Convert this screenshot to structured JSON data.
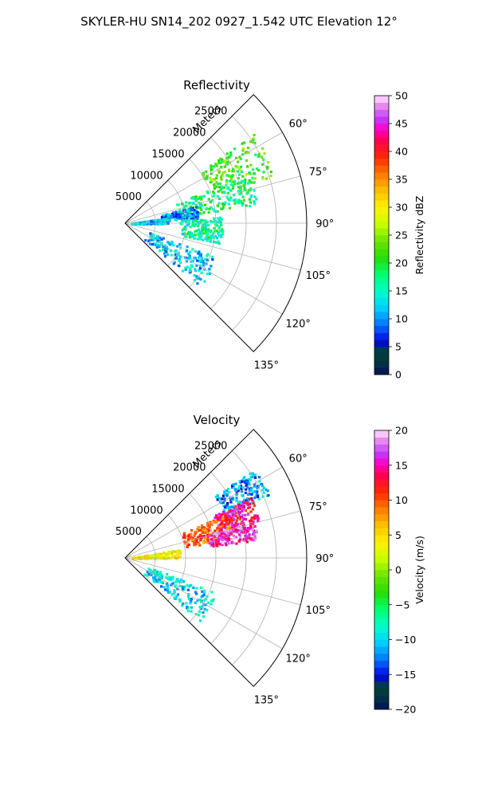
{
  "figure_title": "SKYLER-HU  SN14_202  0927_1.542 UTC Elevation 12°",
  "chart_data": [
    {
      "type": "heatmap",
      "projection": "polar-sector",
      "title": "Reflectivity",
      "radial_axis_label": "Meters",
      "radial_ticks": [
        5000,
        10000,
        15000,
        20000,
        25000
      ],
      "radial_tick_labels": [
        "5000",
        "10000",
        "15000",
        "20000",
        "25000"
      ],
      "azimuth_ticks_deg": [
        60,
        75,
        90,
        105,
        120,
        135
      ],
      "azimuth_tick_labels": [
        "60°",
        "75°",
        "90°",
        "105°",
        "120°",
        "135°"
      ],
      "azimuth_range_deg": [
        45,
        135
      ],
      "radial_range": [
        0,
        30000
      ],
      "grid": true,
      "colorbar": {
        "label": "Reflectivity dBZ",
        "range": [
          0,
          50
        ],
        "ticks": [
          0,
          5,
          10,
          15,
          20,
          25,
          30,
          35,
          40,
          45,
          50
        ],
        "tick_labels": [
          "0",
          "5",
          "10",
          "15",
          "20",
          "25",
          "30",
          "35",
          "40",
          "45",
          "50"
        ],
        "colormap": "HomeyerRainbow"
      },
      "echo_regions": [
        {
          "az": [
            55,
            72
          ],
          "r": [
            15000,
            26000
          ],
          "value": 22
        },
        {
          "az": [
            68,
            82
          ],
          "r": [
            9000,
            22000
          ],
          "value": 18
        },
        {
          "az": [
            76,
            86
          ],
          "r": [
            6000,
            12000
          ],
          "value": 10
        },
        {
          "az": [
            82,
            90
          ],
          "r": [
            1000,
            7000
          ],
          "value": 12
        },
        {
          "az": [
            86,
            102
          ],
          "r": [
            9000,
            16000
          ],
          "value": 16
        },
        {
          "az": [
            110,
            130
          ],
          "r": [
            4000,
            16000
          ],
          "value": 12
        }
      ]
    },
    {
      "type": "heatmap",
      "projection": "polar-sector",
      "title": "Velocity",
      "radial_axis_label": "Meters",
      "radial_ticks": [
        5000,
        10000,
        15000,
        20000,
        25000
      ],
      "radial_tick_labels": [
        "5000",
        "10000",
        "15000",
        "20000",
        "25000"
      ],
      "azimuth_ticks_deg": [
        60,
        75,
        90,
        105,
        120,
        135
      ],
      "azimuth_tick_labels": [
        "60°",
        "75°",
        "90°",
        "105°",
        "120°",
        "135°"
      ],
      "azimuth_range_deg": [
        45,
        135
      ],
      "radial_range": [
        0,
        30000
      ],
      "grid": true,
      "colorbar": {
        "label": "Velocity (m/s)",
        "range": [
          -20,
          20
        ],
        "ticks": [
          -20,
          -15,
          -10,
          -5,
          0,
          5,
          10,
          15,
          20
        ],
        "tick_labels": [
          "−20",
          "−15",
          "−10",
          "−5",
          "0",
          "5",
          "10",
          "15",
          "20"
        ],
        "colormap": "HomeyerRainbow"
      },
      "echo_regions": [
        {
          "az": [
            55,
            66
          ],
          "r": [
            18000,
            26000
          ],
          "value": -12
        },
        {
          "az": [
            64,
            74
          ],
          "r": [
            16000,
            23000
          ],
          "value": 14
        },
        {
          "az": [
            66,
            80
          ],
          "r": [
            10000,
            18000
          ],
          "value": 10
        },
        {
          "az": [
            74,
            82
          ],
          "r": [
            14000,
            22000
          ],
          "value": 16
        },
        {
          "az": [
            80,
            90
          ],
          "r": [
            1000,
            9000
          ],
          "value": 4
        },
        {
          "az": [
            110,
            130
          ],
          "r": [
            4000,
            16000
          ],
          "value": -10
        }
      ]
    }
  ]
}
